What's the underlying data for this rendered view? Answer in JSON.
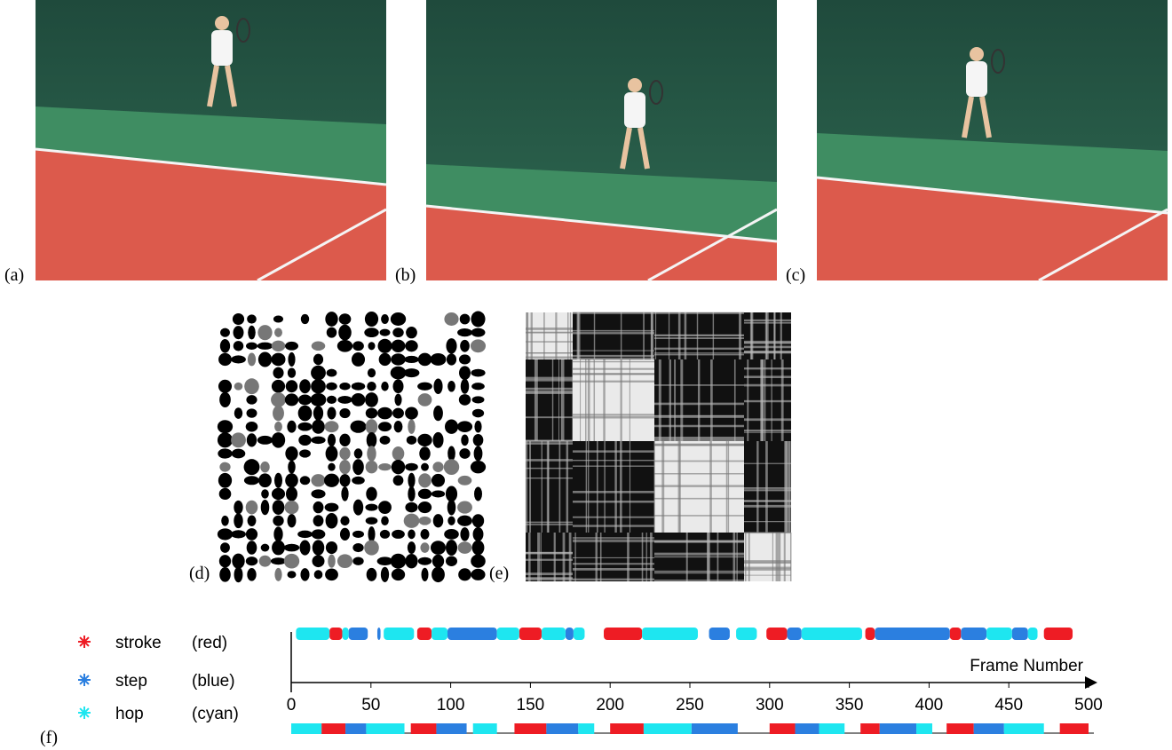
{
  "figure": {
    "panels": [
      "(a)",
      "(b)",
      "(c)",
      "(d)",
      "(e)",
      "(f)"
    ]
  },
  "chart_data": {
    "type": "timeline",
    "xlabel": "Frame Number",
    "xlim": [
      0,
      500
    ],
    "xticks": [
      0,
      50,
      100,
      150,
      200,
      250,
      300,
      350,
      400,
      450,
      500
    ],
    "series": [
      {
        "name": "stroke",
        "color_name": "(red)",
        "color": "#ee1c24",
        "detected": [
          [
            24,
            32
          ],
          [
            79,
            88
          ],
          [
            143,
            157
          ],
          [
            196,
            220
          ],
          [
            298,
            311
          ],
          [
            360,
            366
          ],
          [
            413,
            420
          ],
          [
            472,
            490
          ]
        ],
        "ground_truth": [
          [
            19,
            34
          ],
          [
            75,
            91
          ],
          [
            140,
            160
          ],
          [
            200,
            221
          ],
          [
            300,
            316
          ],
          [
            357,
            369
          ],
          [
            411,
            428
          ],
          [
            482,
            500
          ]
        ]
      },
      {
        "name": "step",
        "color_name": "(blue)",
        "color": "#2b7fe0",
        "detected": [
          [
            36,
            48
          ],
          [
            54,
            56
          ],
          [
            98,
            129
          ],
          [
            172,
            177
          ],
          [
            262,
            275
          ],
          [
            311,
            320
          ],
          [
            366,
            413
          ],
          [
            420,
            436
          ],
          [
            452,
            462
          ]
        ],
        "ground_truth": [
          [
            34,
            47
          ],
          [
            91,
            110
          ],
          [
            160,
            180
          ],
          [
            251,
            280
          ],
          [
            316,
            331
          ],
          [
            369,
            392
          ],
          [
            428,
            447
          ]
        ]
      },
      {
        "name": "hop",
        "color_name": "(cyan)",
        "color": "#1ee6f0",
        "detected": [
          [
            3,
            24
          ],
          [
            32,
            36
          ],
          [
            58,
            77
          ],
          [
            88,
            98
          ],
          [
            129,
            143
          ],
          [
            157,
            172
          ],
          [
            177,
            184
          ],
          [
            220,
            255
          ],
          [
            279,
            292
          ],
          [
            320,
            358
          ],
          [
            436,
            452
          ],
          [
            462,
            468
          ]
        ],
        "ground_truth": [
          [
            0,
            19
          ],
          [
            47,
            71
          ],
          [
            114,
            129
          ],
          [
            180,
            190
          ],
          [
            221,
            251
          ],
          [
            331,
            347
          ],
          [
            392,
            402
          ],
          [
            447,
            472
          ]
        ]
      }
    ]
  }
}
